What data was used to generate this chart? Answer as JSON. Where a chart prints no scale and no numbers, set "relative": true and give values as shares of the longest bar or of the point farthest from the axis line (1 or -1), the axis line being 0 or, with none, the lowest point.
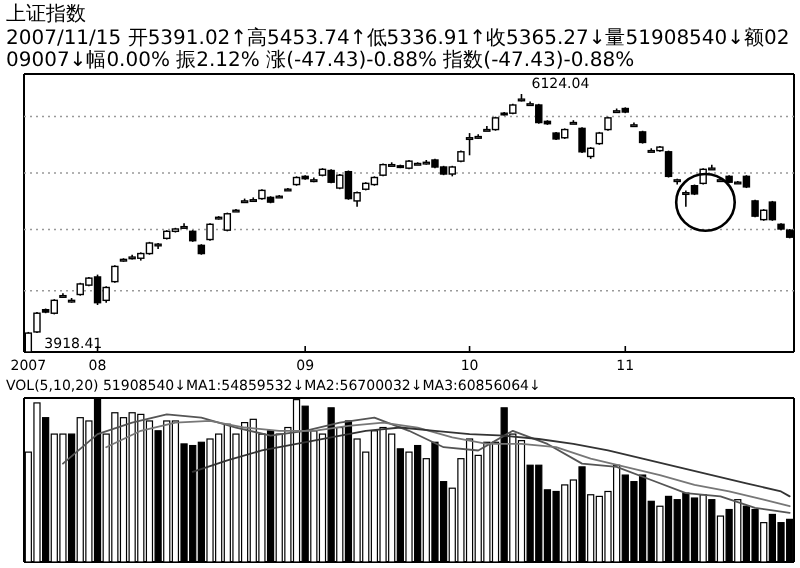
{
  "chart_data": [
    {
      "type": "candlestick",
      "title": "上证指数",
      "subtitle": "2007/11/15 开5391.02↑高5453.74↑低5336.91↑收5365.27↓量51908540↓额0209007↓幅0.00% 振2.12% 涨(-47.43)-0.88% 指数(-47.43)-0.88%",
      "categories": [
        "2007",
        null,
        null,
        null,
        null,
        null,
        null,
        null,
        "08",
        null,
        null,
        null,
        null,
        null,
        null,
        null,
        null,
        null,
        null,
        null,
        null,
        null,
        null,
        null,
        null,
        null,
        null,
        null,
        null,
        null,
        null,
        null,
        "09",
        null,
        null,
        null,
        null,
        null,
        null,
        null,
        null,
        null,
        null,
        null,
        null,
        null,
        null,
        null,
        null,
        null,
        null,
        "10",
        null,
        null,
        null,
        null,
        null,
        null,
        null,
        null,
        null,
        null,
        null,
        null,
        null,
        null,
        null,
        null,
        null,
        "11",
        null,
        null,
        null,
        null,
        null,
        null,
        null,
        null,
        null,
        null,
        null,
        null,
        null,
        null,
        null,
        null,
        null,
        null,
        null
      ],
      "ohlc": [
        [
          3918.41,
          4090,
          3918.41,
          4080
        ],
        [
          4090,
          4260,
          4080,
          4250
        ],
        [
          4280,
          4290,
          4250,
          4260
        ],
        [
          4250,
          4370,
          4240,
          4360
        ],
        [
          4390,
          4420,
          4380,
          4400
        ],
        [
          4355,
          4380,
          4340,
          4360
        ],
        [
          4410,
          4510,
          4400,
          4500
        ],
        [
          4490,
          4560,
          4480,
          4550
        ],
        [
          4560,
          4580,
          4320,
          4340
        ],
        [
          4360,
          4480,
          4340,
          4470
        ],
        [
          4520,
          4660,
          4510,
          4650
        ],
        [
          4700,
          4720,
          4690,
          4710
        ],
        [
          4720,
          4750,
          4710,
          4730
        ],
        [
          4720,
          4770,
          4700,
          4760
        ],
        [
          4760,
          4860,
          4750,
          4850
        ],
        [
          4830,
          4850,
          4800,
          4840
        ],
        [
          4890,
          4960,
          4880,
          4950
        ],
        [
          4950,
          4980,
          4940,
          4970
        ],
        [
          4990,
          5020,
          4980,
          4990
        ],
        [
          4950,
          4960,
          4860,
          4870
        ],
        [
          4830,
          4840,
          4750,
          4760
        ],
        [
          4880,
          5020,
          4870,
          5010
        ],
        [
          5060,
          5080,
          5050,
          5070
        ],
        [
          4960,
          5110,
          4950,
          5100
        ],
        [
          5130,
          5140,
          5120,
          5130
        ],
        [
          5210,
          5230,
          5200,
          5210
        ],
        [
          5220,
          5240,
          5210,
          5220
        ],
        [
          5230,
          5310,
          5220,
          5300
        ],
        [
          5240,
          5250,
          5190,
          5200
        ],
        [
          5250,
          5260,
          5240,
          5250
        ],
        [
          5310,
          5320,
          5300,
          5310
        ],
        [
          5350,
          5420,
          5340,
          5410
        ],
        [
          5420,
          5430,
          5390,
          5400
        ],
        [
          5390,
          5410,
          5370,
          5390
        ],
        [
          5430,
          5490,
          5420,
          5480
        ],
        [
          5470,
          5480,
          5360,
          5370
        ],
        [
          5320,
          5440,
          5310,
          5430
        ],
        [
          5460,
          5470,
          5220,
          5230
        ],
        [
          5210,
          5290,
          5160,
          5280
        ],
        [
          5310,
          5370,
          5300,
          5360
        ],
        [
          5350,
          5420,
          5340,
          5410
        ],
        [
          5430,
          5530,
          5420,
          5520
        ],
        [
          5520,
          5540,
          5510,
          5520
        ],
        [
          5510,
          5520,
          5490,
          5500
        ],
        [
          5490,
          5560,
          5480,
          5550
        ],
        [
          5530,
          5540,
          5520,
          5530
        ],
        [
          5540,
          5560,
          5520,
          5540
        ],
        [
          5560,
          5570,
          5490,
          5500
        ],
        [
          5500,
          5510,
          5430,
          5440
        ],
        [
          5440,
          5510,
          5420,
          5500
        ],
        [
          5550,
          5640,
          5540,
          5630
        ],
        [
          5750,
          5790,
          5600,
          5750
        ],
        [
          5750,
          5780,
          5740,
          5760
        ],
        [
          5820,
          5850,
          5810,
          5820
        ],
        [
          5820,
          5930,
          5810,
          5920
        ],
        [
          5960,
          5970,
          5940,
          5950
        ],
        [
          5960,
          6040,
          5950,
          6030
        ],
        [
          6080,
          6124.04,
          6060,
          6080
        ],
        [
          6040,
          6060,
          6030,
          6040
        ],
        [
          6030,
          6040,
          5870,
          5880
        ],
        [
          5890,
          5900,
          5860,
          5870
        ],
        [
          5790,
          5800,
          5730,
          5740
        ],
        [
          5750,
          5830,
          5740,
          5820
        ],
        [
          5880,
          5900,
          5870,
          5880
        ],
        [
          5830,
          5840,
          5620,
          5630
        ],
        [
          5590,
          5670,
          5570,
          5660
        ],
        [
          5700,
          5800,
          5690,
          5790
        ],
        [
          5820,
          5930,
          5810,
          5920
        ],
        [
          5980,
          6000,
          5970,
          5980
        ],
        [
          6000,
          6010,
          5960,
          5970
        ],
        [
          5860,
          5880,
          5850,
          5860
        ],
        [
          5800,
          5810,
          5700,
          5710
        ],
        [
          5640,
          5660,
          5630,
          5640
        ],
        [
          5640,
          5680,
          5630,
          5670
        ],
        [
          5630,
          5640,
          5410,
          5420
        ],
        [
          5390,
          5400,
          5350,
          5390
        ],
        [
          5280,
          5300,
          5160,
          5280
        ],
        [
          5340,
          5350,
          5260,
          5270
        ],
        [
          5360,
          5490,
          5350,
          5480
        ],
        [
          5490,
          5520,
          5480,
          5490
        ],
        [
          5390,
          5400,
          5380,
          5390
        ],
        [
          5420,
          5430,
          5360,
          5370
        ],
        [
          5370,
          5380,
          5360,
          5370
        ],
        [
          5420,
          5430,
          5320,
          5330
        ],
        [
          5210,
          5220,
          5070,
          5080
        ],
        [
          5050,
          5140,
          5040,
          5130
        ],
        [
          5200,
          5210,
          5040,
          5050
        ],
        [
          5010,
          5020,
          4960,
          4970
        ],
        [
          4960,
          4970,
          4890,
          4900
        ]
      ],
      "yticks": [
        {
          "value": 5932,
          "label": null
        },
        {
          "value": 5449,
          "label": null
        },
        {
          "value": 4966,
          "label": null
        },
        {
          "value": 4442,
          "label": null
        }
      ],
      "grid": "y",
      "annotations": [
        "6124.04",
        "3918.41"
      ]
    },
    {
      "type": "bar",
      "relative": true,
      "title": "VOL(5,10,20) 51908540↓MA1:54859532↓MA2:56700032↓MA3:60856064↓",
      "categories": [
        null,
        null,
        null,
        null,
        null,
        null,
        null,
        null,
        null,
        null,
        null,
        null,
        null,
        null,
        null,
        null,
        null,
        null,
        null,
        null,
        null,
        null,
        null,
        null,
        null,
        null,
        null,
        null,
        null,
        null,
        null,
        null,
        null,
        null,
        null,
        null,
        null,
        null,
        null,
        null,
        null,
        null,
        null,
        null,
        null,
        null,
        null,
        null,
        null,
        null,
        null,
        null,
        null,
        null,
        null,
        null,
        null,
        null,
        null,
        null,
        null,
        null,
        null,
        null,
        null,
        null,
        null,
        null,
        null,
        null,
        null,
        null,
        null,
        null,
        null,
        null,
        null,
        null,
        null,
        null,
        null,
        null,
        null,
        null,
        null,
        null,
        null,
        null,
        null
      ],
      "series": [
        {
          "values": [
            0.67,
            0.97,
            0.88,
            0.78,
            0.78,
            0.78,
            0.88,
            0.86,
            1,
            0.78,
            0.91,
            0.88,
            0.91,
            0.9,
            0.86,
            0.8,
            0.86,
            0.86,
            0.72,
            0.71,
            0.73,
            0.75,
            0.78,
            0.84,
            0.78,
            0.85,
            0.87,
            0.78,
            0.8,
            0.78,
            0.82,
            0.99,
            0.95,
            0.8,
            0.78,
            0.94,
            0.82,
            0.86,
            0.75,
            0.67,
            0.8,
            0.82,
            0.78,
            0.69,
            0.67,
            0.71,
            0.63,
            0.73,
            0.49,
            0.45,
            0.63,
            0.75,
            0.65,
            0.73,
            0.73,
            0.94,
            0.78,
            0.74,
            0.59,
            0.59,
            0.44,
            0.43,
            0.47,
            0.5,
            0.58,
            0.41,
            0.4,
            0.43,
            0.59,
            0.53,
            0.49,
            0.53,
            0.37,
            0.34,
            0.4,
            0.38,
            0.42,
            0.39,
            0.41,
            0.38,
            0.28,
            0.32,
            0.38,
            0.34,
            0.32,
            0.24,
            0.29,
            0.24,
            0.26
          ],
          "colors": [
            "#ffffff",
            "#ffffff",
            "#000000",
            "#ffffff",
            "#ffffff",
            "#000000",
            "#ffffff",
            "#ffffff",
            "#000000",
            "#ffffff",
            "#ffffff",
            "#ffffff",
            "#ffffff",
            "#ffffff",
            "#ffffff",
            "#000000",
            "#ffffff",
            "#ffffff",
            "#000000",
            "#000000",
            "#000000",
            "#ffffff",
            "#ffffff",
            "#ffffff",
            "#ffffff",
            "#ffffff",
            "#ffffff",
            "#ffffff",
            "#000000",
            "#ffffff",
            "#ffffff",
            "#ffffff",
            "#000000",
            "#ffffff",
            "#ffffff",
            "#000000",
            "#ffffff",
            "#000000",
            "#ffffff",
            "#ffffff",
            "#ffffff",
            "#ffffff",
            "#ffffff",
            "#000000",
            "#ffffff",
            "#000000",
            "#ffffff",
            "#000000",
            "#000000",
            "#ffffff",
            "#ffffff",
            "#ffffff",
            "#ffffff",
            "#ffffff",
            "#ffffff",
            "#000000",
            "#ffffff",
            "#ffffff",
            "#000000",
            "#000000",
            "#000000",
            "#000000",
            "#ffffff",
            "#ffffff",
            "#000000",
            "#ffffff",
            "#ffffff",
            "#ffffff",
            "#ffffff",
            "#000000",
            "#000000",
            "#000000",
            "#000000",
            "#ffffff",
            "#000000",
            "#000000",
            "#000000",
            "#000000",
            "#ffffff",
            "#000000",
            "#ffffff",
            "#000000",
            "#ffffff",
            "#000000",
            "#000000",
            "#ffffff",
            "#000000",
            "#000000",
            "#000000"
          ]
        },
        {
          "type": "line",
          "color": "#555555",
          "values": [
            null,
            null,
            null,
            null,
            0.6,
            null,
            null,
            null,
            0.78,
            null,
            null,
            null,
            0.85,
            null,
            null,
            null,
            0.9,
            null,
            null,
            null,
            0.88,
            null,
            null,
            null,
            0.82,
            null,
            null,
            null,
            0.77,
            null,
            null,
            null,
            0.8,
            null,
            null,
            null,
            0.85,
            null,
            null,
            null,
            0.88,
            null,
            null,
            null,
            0.8,
            null,
            null,
            null,
            0.7,
            null,
            null,
            null,
            0.68,
            null,
            null,
            null,
            0.8,
            null,
            null,
            null,
            0.72,
            null,
            null,
            null,
            0.6,
            null,
            null,
            null,
            0.58,
            null,
            null,
            null,
            0.5,
            null,
            null,
            null,
            0.42,
            null,
            null,
            null,
            0.4,
            null,
            null,
            null,
            0.33,
            null,
            null,
            null,
            0.3
          ]
        },
        {
          "type": "line",
          "color": "#777777",
          "values": [
            null,
            null,
            null,
            null,
            null,
            null,
            null,
            null,
            null,
            0.7,
            null,
            null,
            null,
            0.8,
            null,
            null,
            null,
            0.85,
            null,
            null,
            null,
            0.86,
            null,
            null,
            null,
            0.82,
            null,
            null,
            null,
            0.8,
            null,
            null,
            null,
            0.8,
            null,
            null,
            null,
            0.83,
            null,
            null,
            null,
            0.85,
            null,
            null,
            null,
            0.82,
            null,
            null,
            null,
            0.76,
            null,
            null,
            null,
            0.72,
            null,
            null,
            null,
            0.72,
            null,
            null,
            null,
            0.7,
            null,
            null,
            null,
            0.63,
            null,
            null,
            null,
            0.58,
            null,
            null,
            null,
            0.53,
            null,
            null,
            null,
            0.47,
            null,
            null,
            null,
            0.43,
            null,
            null,
            null,
            0.38,
            null,
            null,
            0.34
          ]
        },
        {
          "type": "line",
          "color": "#333333",
          "values": [
            null,
            null,
            null,
            null,
            null,
            null,
            null,
            null,
            null,
            null,
            null,
            null,
            null,
            null,
            null,
            null,
            null,
            null,
            null,
            0.55,
            null,
            null,
            null,
            0.62,
            null,
            null,
            null,
            0.68,
            null,
            null,
            null,
            0.72,
            null,
            null,
            null,
            0.76,
            null,
            null,
            null,
            0.8,
            null,
            null,
            null,
            0.82,
            null,
            null,
            null,
            0.8,
            null,
            null,
            null,
            0.78,
            null,
            null,
            null,
            0.77,
            null,
            null,
            null,
            0.75,
            null,
            null,
            null,
            0.72,
            null,
            null,
            null,
            0.68,
            null,
            null,
            null,
            0.63,
            null,
            null,
            null,
            0.58,
            null,
            null,
            null,
            0.53,
            null,
            null,
            null,
            0.48,
            null,
            null,
            null,
            0.43,
            0.4
          ]
        }
      ]
    }
  ]
}
